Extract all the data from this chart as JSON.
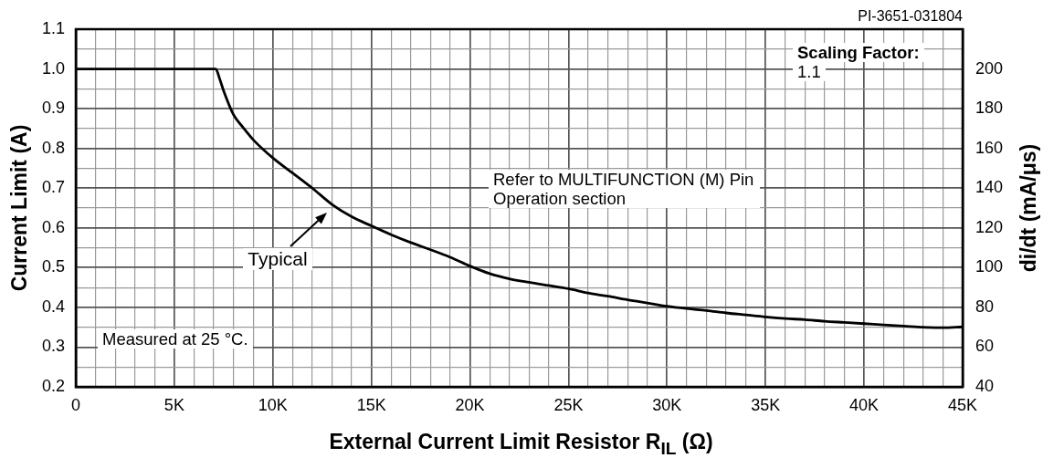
{
  "chart_data": {
    "type": "line",
    "xlabel": "External Current Limit Resistor R$_{IL}$ (Ω)",
    "ylabel": "Current Limit (A)",
    "y2label": "di/dt (mA/μs)",
    "annotations": [
      "PI-3651-031804",
      "Scaling Factor:",
      "1.1",
      "Refer to MULTIFUNCTION (M) Pin Operation section",
      "Measured at 25 °C.",
      "Typical"
    ],
    "x": [
      0,
      7100,
      7300,
      7500,
      8000,
      8500,
      9000,
      10000,
      11000,
      12000,
      13000,
      14000,
      15000,
      16000,
      17000,
      18000,
      19000,
      20000,
      21000,
      22000,
      23000,
      24000,
      25000,
      26000,
      27000,
      28000,
      29000,
      30000,
      31000,
      32000,
      33000,
      34000,
      35000,
      36000,
      37000,
      38000,
      39000,
      40000,
      41000,
      42000,
      43000,
      44000,
      45000
    ],
    "series": [
      {
        "color": "#000000",
        "values": [
          1.0,
          1.0,
          0.975,
          0.945,
          0.885,
          0.852,
          0.822,
          0.776,
          0.738,
          0.7,
          0.659,
          0.628,
          0.605,
          0.583,
          0.563,
          0.545,
          0.526,
          0.504,
          0.485,
          0.472,
          0.463,
          0.455,
          0.447,
          0.436,
          0.428,
          0.419,
          0.411,
          0.403,
          0.397,
          0.392,
          0.386,
          0.381,
          0.376,
          0.372,
          0.369,
          0.365,
          0.362,
          0.359,
          0.356,
          0.353,
          0.35,
          0.349,
          0.351
        ]
      }
    ],
    "xlim": [
      0,
      45000
    ],
    "xticks": [
      0,
      {
        "value": 1000,
        "label": null
      },
      {
        "value": 2000,
        "label": null
      },
      {
        "value": 3000,
        "label": null
      },
      {
        "value": 4000,
        "label": null
      },
      {
        "value": 5000,
        "label": "5K"
      },
      {
        "value": 6000,
        "label": null
      },
      {
        "value": 7000,
        "label": null
      },
      {
        "value": 8000,
        "label": null
      },
      {
        "value": 9000,
        "label": null
      },
      {
        "value": 10000,
        "label": "10K"
      },
      {
        "value": 11000,
        "label": null
      },
      {
        "value": 12000,
        "label": null
      },
      {
        "value": 13000,
        "label": null
      },
      {
        "value": 14000,
        "label": null
      },
      {
        "value": 15000,
        "label": "15K"
      },
      {
        "value": 16000,
        "label": null
      },
      {
        "value": 17000,
        "label": null
      },
      {
        "value": 18000,
        "label": null
      },
      {
        "value": 19000,
        "label": null
      },
      {
        "value": 20000,
        "label": "20K"
      },
      {
        "value": 21000,
        "label": null
      },
      {
        "value": 22000,
        "label": null
      },
      {
        "value": 23000,
        "label": null
      },
      {
        "value": 24000,
        "label": null
      },
      {
        "value": 25000,
        "label": "25K"
      },
      {
        "value": 26000,
        "label": null
      },
      {
        "value": 27000,
        "label": null
      },
      {
        "value": 28000,
        "label": null
      },
      {
        "value": 29000,
        "label": null
      },
      {
        "value": 30000,
        "label": "30K"
      },
      {
        "value": 31000,
        "label": null
      },
      {
        "value": 32000,
        "label": null
      },
      {
        "value": 33000,
        "label": null
      },
      {
        "value": 34000,
        "label": null
      },
      {
        "value": 35000,
        "label": "35K"
      },
      {
        "value": 36000,
        "label": null
      },
      {
        "value": 37000,
        "label": null
      },
      {
        "value": 38000,
        "label": null
      },
      {
        "value": 39000,
        "label": null
      },
      {
        "value": 40000,
        "label": "40K"
      },
      {
        "value": 41000,
        "label": null
      },
      {
        "value": 42000,
        "label": null
      },
      {
        "value": 43000,
        "label": null
      },
      {
        "value": 44000,
        "label": null
      },
      {
        "value": 45000,
        "label": "45K"
      }
    ],
    "ylim": [
      0.2,
      1.1
    ],
    "yticks": [
      0.2,
      {
        "value": 0.25,
        "label": null
      },
      0.3,
      {
        "value": 0.35,
        "label": null
      },
      0.4,
      {
        "value": 0.45,
        "label": null
      },
      0.5,
      {
        "value": 0.55,
        "label": null
      },
      0.6,
      {
        "value": 0.65,
        "label": null
      },
      0.7,
      {
        "value": 0.75,
        "label": null
      },
      0.8,
      {
        "value": 0.85,
        "label": null
      },
      0.9,
      {
        "value": 0.95,
        "label": null
      },
      {
        "value": 1,
        "label": "1.0"
      },
      {
        "value": 1.05,
        "label": null
      },
      1.1
    ],
    "y2lim": [
      40,
      220
    ],
    "y2ticks": [
      40,
      60,
      80,
      100,
      120,
      140,
      160,
      180,
      200
    ],
    "grid": true,
    "line_style": "solid"
  }
}
